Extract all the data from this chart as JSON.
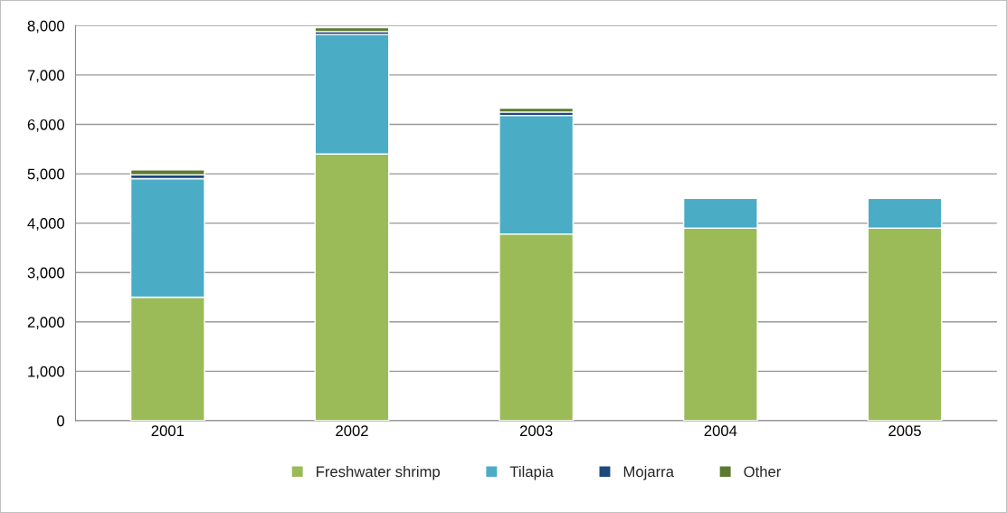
{
  "chart_data": {
    "type": "bar",
    "stacked": true,
    "categories": [
      "2001",
      "2002",
      "2003",
      "2004",
      "2005"
    ],
    "series": [
      {
        "name": "Freshwater shrimp",
        "color": "#9bbb59",
        "values": [
          2500,
          5400,
          3780,
          3900,
          3900
        ]
      },
      {
        "name": "Tilapia",
        "color": "#4bacc6",
        "values": [
          2400,
          2420,
          2400,
          600,
          600
        ]
      },
      {
        "name": "Mojarra",
        "color": "#1f497d",
        "values": [
          80,
          60,
          70,
          10,
          10
        ]
      },
      {
        "name": "Other",
        "color": "#5c7a2e",
        "values": [
          100,
          80,
          80,
          10,
          10
        ]
      }
    ],
    "ylim": [
      0,
      8000
    ],
    "yticks": [
      {
        "value": 0,
        "label": "0"
      },
      {
        "value": 1000,
        "label": "1,000"
      },
      {
        "value": 2000,
        "label": "2,000"
      },
      {
        "value": 3000,
        "label": "3,000"
      },
      {
        "value": 4000,
        "label": "4,000"
      },
      {
        "value": 5000,
        "label": "5,000"
      },
      {
        "value": 6000,
        "label": "6,000"
      },
      {
        "value": 7000,
        "label": "7,000"
      },
      {
        "value": 8000,
        "label": "8,000"
      }
    ],
    "grid": "y",
    "legend": "bottom"
  }
}
